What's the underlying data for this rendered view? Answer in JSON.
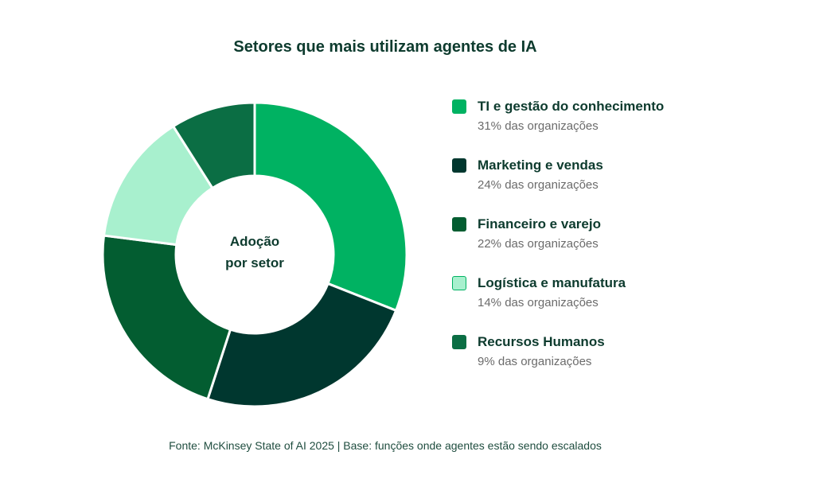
{
  "chart_data": {
    "type": "pie",
    "title": "Setores que mais utilizam agentes de IA",
    "center_label_line1": "Adoção",
    "center_label_line2": "por setor",
    "categories": [
      "TI e gestão do conhecimento",
      "Marketing e vendas",
      "Financeiro e varejo",
      "Logística e manufatura",
      "Recursos Humanos"
    ],
    "values": [
      31,
      24,
      22,
      14,
      9
    ],
    "value_labels": [
      "31% das organizações",
      "24% das organizações",
      "22% das organizações",
      "14% das organizações",
      "9% das organizações"
    ],
    "colors": [
      "#00b262",
      "#00372f",
      "#035d31",
      "#a8f0ce",
      "#0b6e44"
    ],
    "legend_position": "right",
    "source": "Fonte: McKinsey State of AI 2025 | Base: funções onde agentes estão sendo escalados"
  }
}
